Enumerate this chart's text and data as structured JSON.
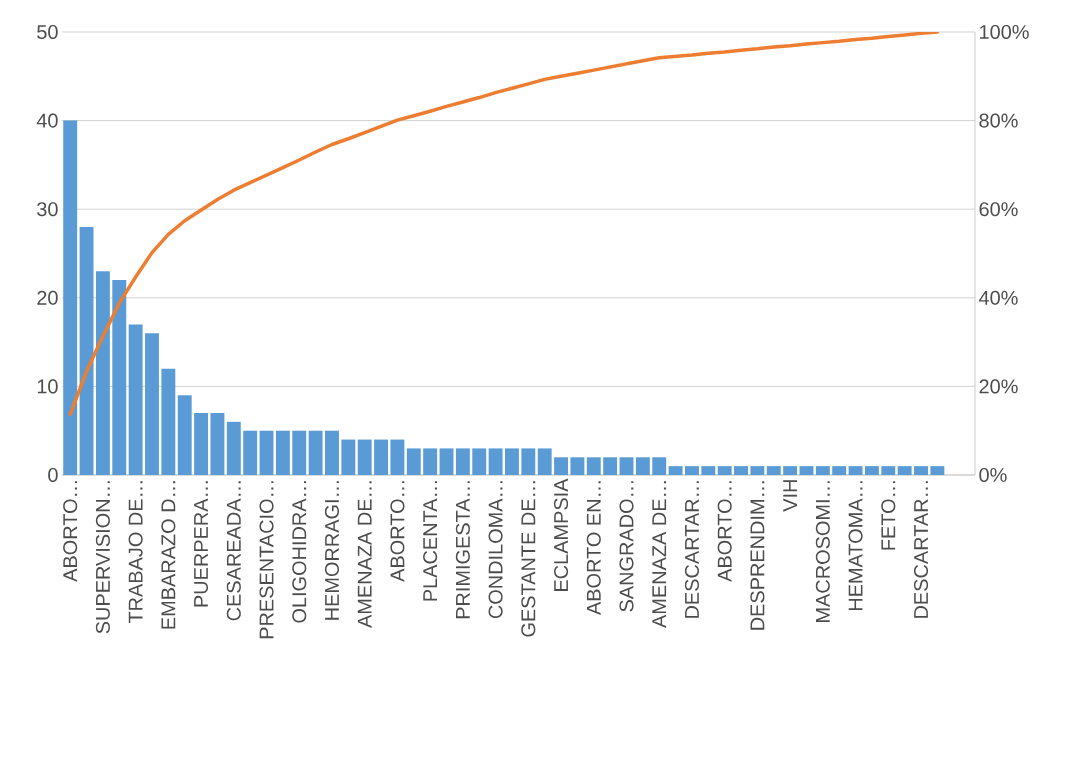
{
  "chart_data": {
    "type": "bar",
    "categories": [
      "ABORTO…",
      null,
      "SUPERVISION…",
      null,
      "TRABAJO DE…",
      null,
      "EMBARAZO D…",
      null,
      "PUERPERA…",
      null,
      "CESAREADA…",
      null,
      "PRESENTACIO…",
      null,
      "OLIGOHIDRA…",
      null,
      "HEMORRAGI…",
      null,
      "AMENAZA DE…",
      null,
      "ABORTO…",
      null,
      "PLACENTA…",
      null,
      "PRIMIGESTA…",
      null,
      "CONDILOMA…",
      null,
      "GESTANTE DE…",
      null,
      "ECLAMPSIA",
      null,
      "ABORTO EN…",
      null,
      "SANGRADO…",
      null,
      "AMENAZA DE…",
      null,
      "DESCARTAR…",
      null,
      "ABORTO…",
      null,
      "DESPRENDIM…",
      null,
      "VIH",
      null,
      "MACROSOMI…",
      null,
      "HEMATOMA…",
      null,
      "FETO…",
      null,
      "DESCARTAR…",
      null
    ],
    "series": [
      {
        "color": "#5b9bd5",
        "values": [
          40,
          28,
          23,
          22,
          17,
          16,
          12,
          9,
          7,
          7,
          6,
          5,
          5,
          5,
          5,
          5,
          5,
          4,
          4,
          4,
          4,
          3,
          3,
          3,
          3,
          3,
          3,
          3,
          3,
          3,
          2,
          2,
          2,
          2,
          2,
          2,
          2,
          1,
          1,
          1,
          1,
          1,
          1,
          1,
          1,
          1,
          1,
          1,
          1,
          1,
          1,
          1,
          1,
          1
        ]
      },
      {
        "type": "line",
        "axis": "y2",
        "color": "#ed7d31",
        "values": [
          13.7,
          23.4,
          31.3,
          38.8,
          44.7,
          50.2,
          54.3,
          57.4,
          59.8,
          62.2,
          64.3,
          66.0,
          67.7,
          69.4,
          71.1,
          72.9,
          74.6,
          75.9,
          77.3,
          78.7,
          80.1,
          81.1,
          82.1,
          83.2,
          84.2,
          85.2,
          86.3,
          87.3,
          88.3,
          89.3,
          90.0,
          90.7,
          91.4,
          92.1,
          92.8,
          93.5,
          94.2,
          94.5,
          94.8,
          95.2,
          95.5,
          95.9,
          96.2,
          96.6,
          96.9,
          97.3,
          97.6,
          97.9,
          98.3,
          98.6,
          99.0,
          99.3,
          99.7,
          100
        ]
      }
    ],
    "ylim": [
      0,
      50
    ],
    "yticks": [
      0,
      10,
      20,
      30,
      40,
      50
    ],
    "y2lim": [
      0,
      100
    ],
    "y2ticks": [
      {
        "value": 0,
        "label": "0%"
      },
      {
        "value": 20,
        "label": "20%"
      },
      {
        "value": 40,
        "label": "40%"
      },
      {
        "value": 60,
        "label": "60%"
      },
      {
        "value": 80,
        "label": "80%"
      },
      {
        "value": 100,
        "label": "100%"
      }
    ],
    "grid": "y"
  }
}
